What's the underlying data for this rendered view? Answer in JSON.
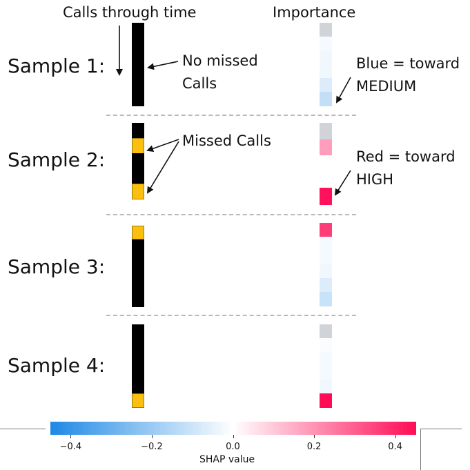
{
  "labels": {
    "calls_header": "Calls through time",
    "importance_header": "Importance",
    "samples": [
      "Sample 1:",
      "Sample 2:",
      "Sample 3:",
      "Sample 4:"
    ],
    "no_missed_line1": "No missed",
    "no_missed_line2": "Calls",
    "missed_calls": "Missed Calls",
    "blue_line1": "Blue = toward",
    "blue_line2": "MEDIUM",
    "red_line1": "Red = toward",
    "red_line2": "HIGH"
  },
  "colors": {
    "call": "#000000",
    "missed": "#fbbf10",
    "neutral": "#d0d3d8",
    "blue": "#1e88e5",
    "red": "#ff0d57",
    "separator": "#b9b9b9"
  },
  "samples": [
    {
      "name": "Sample 1:",
      "calls": [
        "call",
        "call",
        "call",
        "call",
        "call",
        "call"
      ],
      "importance": [
        null,
        -0.02,
        -0.03,
        -0.03,
        -0.07,
        -0.12
      ]
    },
    {
      "name": "Sample 2:",
      "calls": [
        "call",
        "missed",
        "call",
        "call",
        "missed"
      ],
      "importance": [
        null,
        0.18,
        0.0,
        0.0,
        0.44
      ]
    },
    {
      "name": "Sample 3:",
      "calls": [
        "missed",
        "call",
        "call",
        "call",
        "call",
        "call"
      ],
      "importance": [
        0.36,
        -0.02,
        -0.02,
        -0.03,
        -0.07,
        -0.11
      ]
    },
    {
      "name": "Sample 4:",
      "calls": [
        "call",
        "call",
        "call",
        "call",
        "call",
        "missed"
      ],
      "importance": [
        null,
        -0.01,
        -0.02,
        -0.02,
        -0.03,
        0.5
      ]
    }
  ],
  "colorbar": {
    "label": "SHAP value",
    "min": -0.45,
    "max": 0.45,
    "ticks": [
      {
        "value": -0.4,
        "label": "−0.4"
      },
      {
        "value": -0.2,
        "label": "−0.2"
      },
      {
        "value": 0.0,
        "label": "0.0"
      },
      {
        "value": 0.2,
        "label": "0.2"
      },
      {
        "value": 0.4,
        "label": "0.4"
      }
    ]
  }
}
